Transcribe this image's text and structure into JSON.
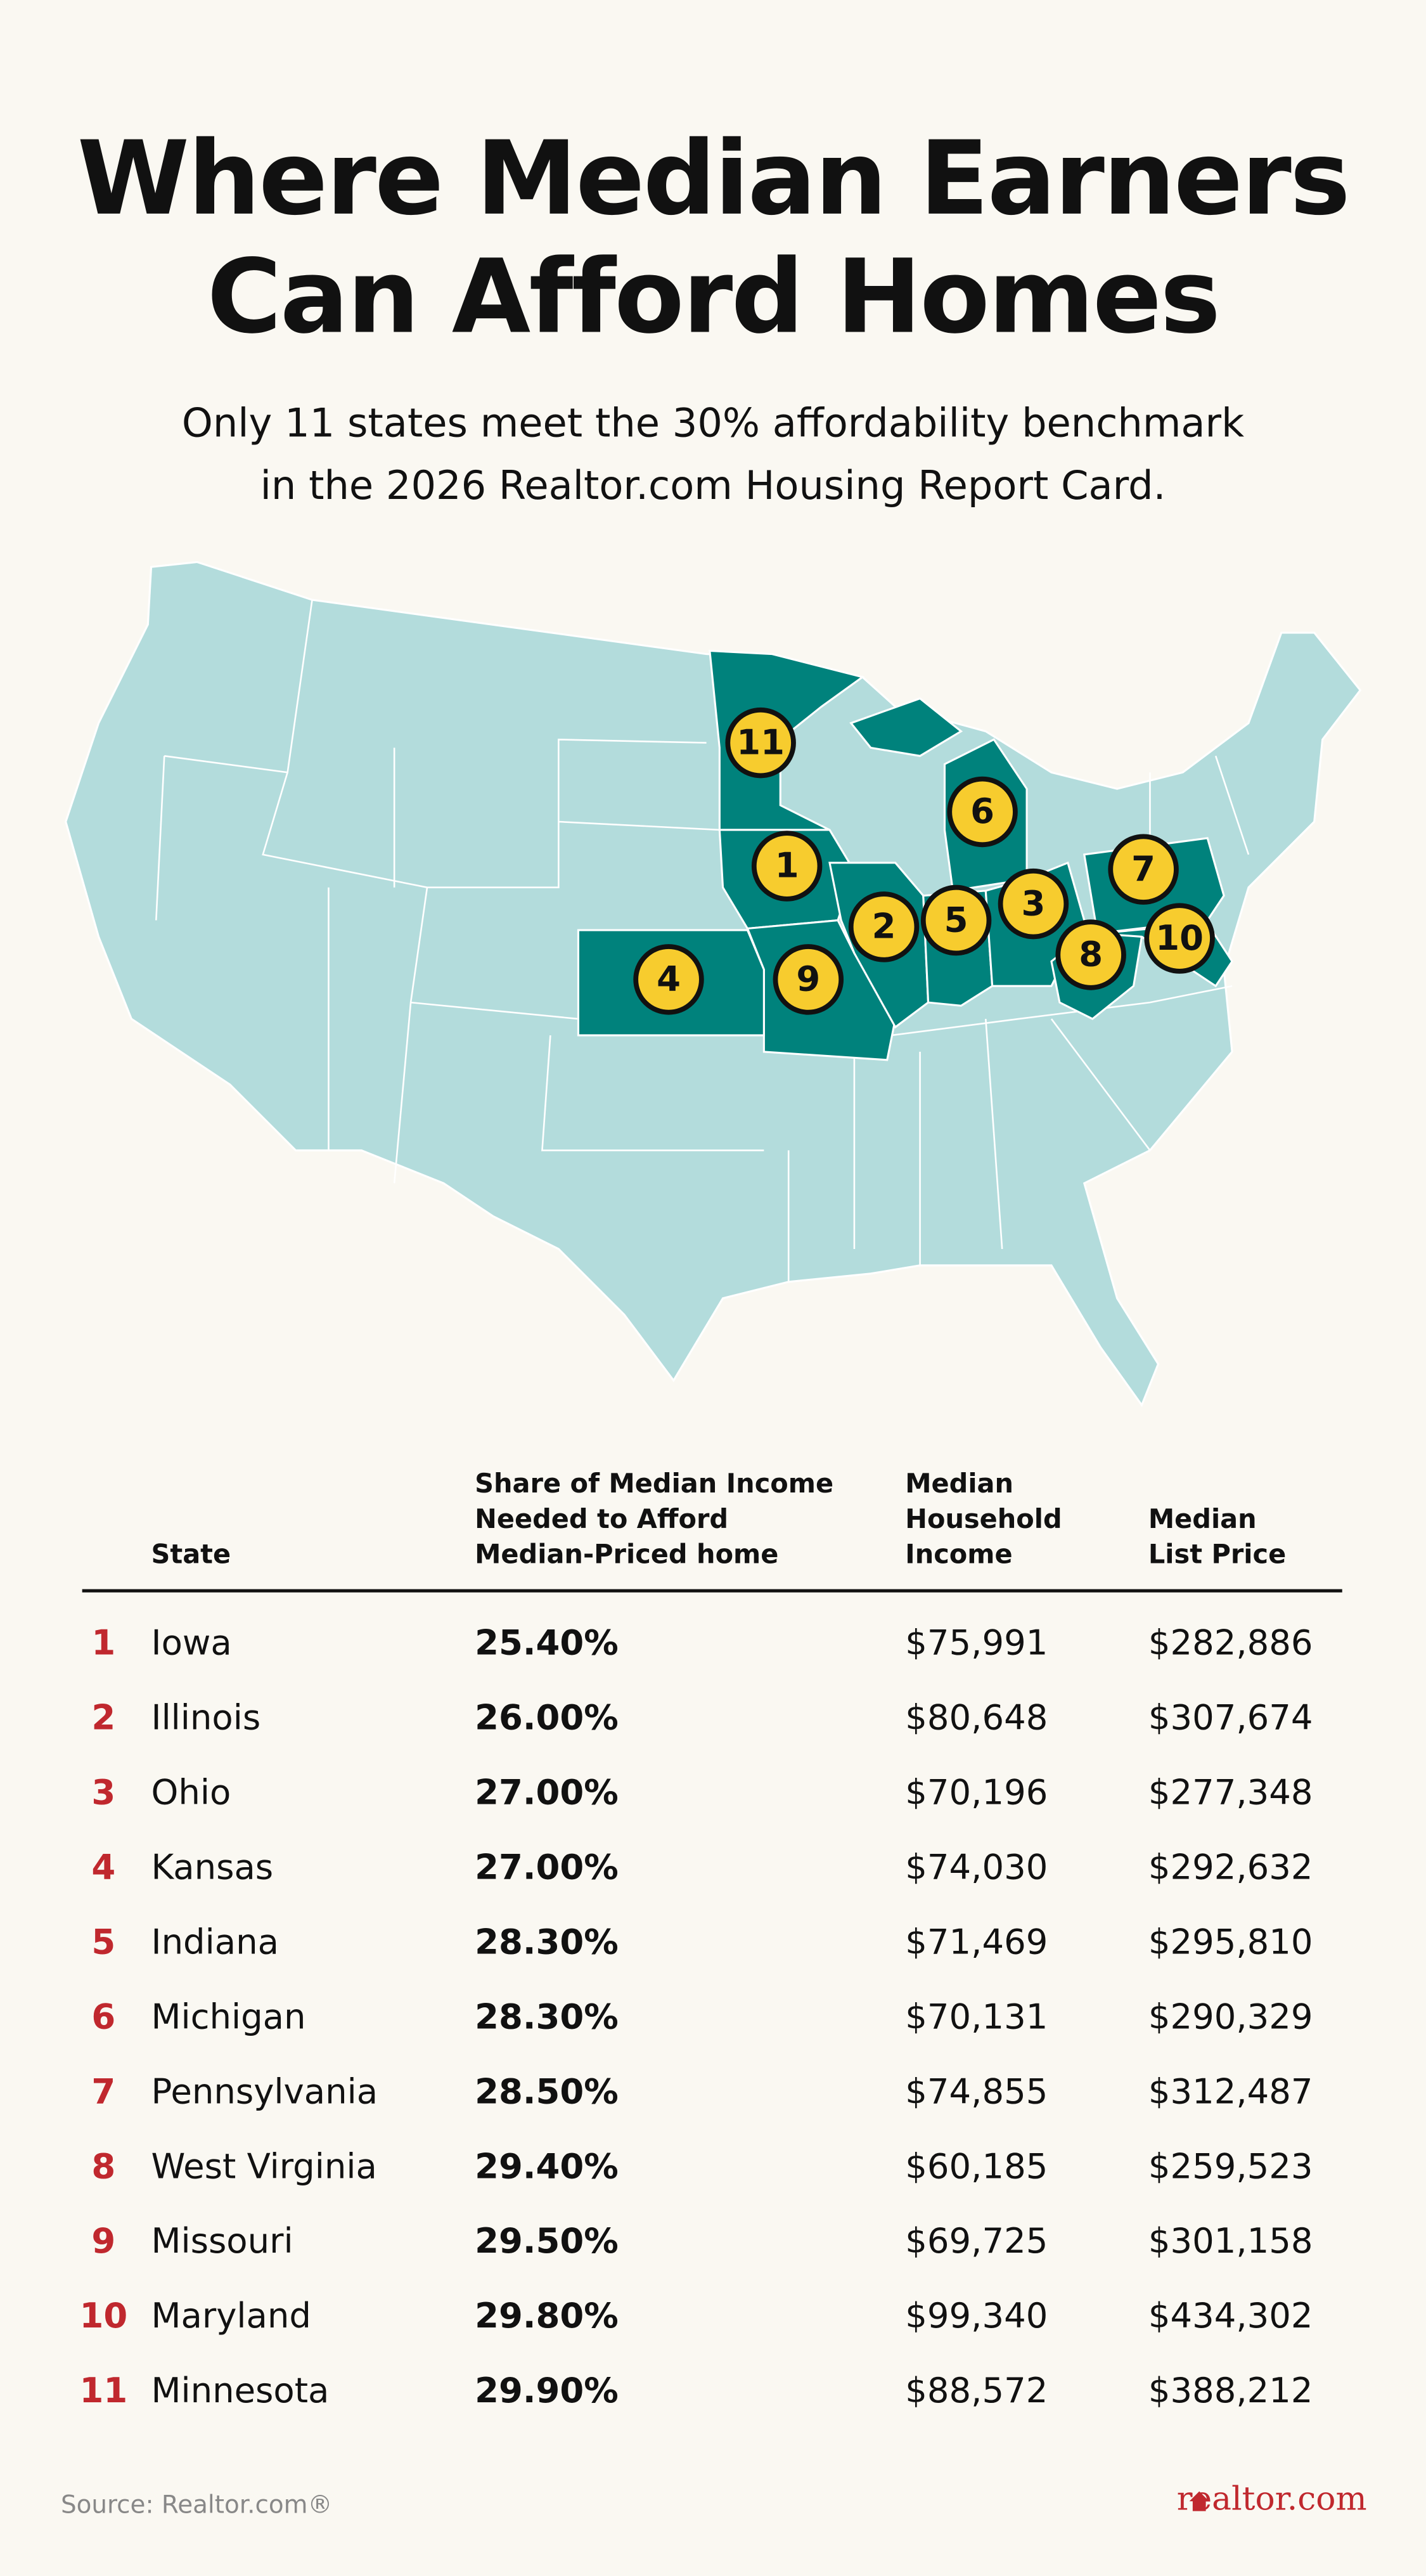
{
  "header": {
    "title": [
      "Where Median Earners",
      "Can Afford Homes"
    ],
    "subtitle": [
      "Only 11 states meet the 30% affordability benchmark",
      "in the 2026 Realtor.com Housing Report Card."
    ]
  },
  "map": {
    "markers": [
      "11",
      "1",
      "6",
      "7",
      "2",
      "5",
      "3",
      "4",
      "9",
      "8",
      "10"
    ]
  },
  "table": {
    "columns": [
      [
        "State"
      ],
      [
        "Share of Median Income",
        "Needed to Afford",
        "Median-Priced home"
      ],
      [
        "Median",
        "Household",
        "Income"
      ],
      [
        "Median",
        "List Price"
      ]
    ],
    "rows": [
      [
        "1",
        "Iowa",
        "25.40%",
        "$75,991",
        "$282,886"
      ],
      [
        "2",
        "Illinois",
        "26.00%",
        "$80,648",
        "$307,674"
      ],
      [
        "3",
        "Ohio",
        "27.00%",
        "$70,196",
        "$277,348"
      ],
      [
        "4",
        "Kansas",
        "27.00%",
        "$74,030",
        "$292,632"
      ],
      [
        "5",
        "Indiana",
        "28.30%",
        "$71,469",
        "$295,810"
      ],
      [
        "6",
        "Michigan",
        "28.30%",
        "$70,131",
        "$290,329"
      ],
      [
        "7",
        "Pennsylvania",
        "28.50%",
        "$74,855",
        "$312,487"
      ],
      [
        "8",
        "West Virginia",
        "29.40%",
        "$60,185",
        "$259,523"
      ],
      [
        "9",
        "Missouri",
        "29.50%",
        "$69,725",
        "$301,158"
      ],
      [
        "10",
        "Maryland",
        "29.80%",
        "$99,340",
        "$434,302"
      ],
      [
        "11",
        "Minnesota",
        "29.90%",
        "$88,572",
        "$388,212"
      ]
    ]
  },
  "footer": {
    "source": "Source: Realtor.com®",
    "logo": "realtor.com"
  }
}
